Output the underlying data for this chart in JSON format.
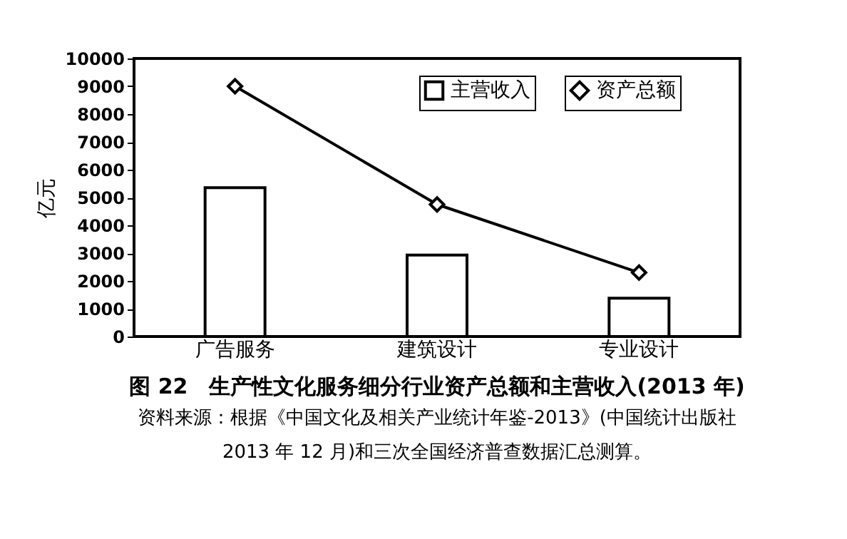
{
  "chart_data": {
    "type": "bar",
    "title": "图 22　生产性文化服务细分行业资产总额和主营收入(2013 年)",
    "ylabel": "亿元",
    "categories": [
      "广告服务",
      "建筑设计",
      "专业设计"
    ],
    "series": [
      {
        "name": "主营收入",
        "color": "#ffffff",
        "values": [
          5350,
          2930,
          1380
        ]
      },
      {
        "name": "资产总额",
        "type": "line",
        "color": "#000000",
        "marker": "diamond",
        "values": [
          9000,
          4750,
          2300
        ]
      }
    ],
    "ylim": [
      0,
      10000
    ],
    "yticks": [
      0,
      1000,
      2000,
      3000,
      4000,
      5000,
      6000,
      7000,
      8000,
      9000,
      10000
    ],
    "grid": false,
    "legend": "top right",
    "annotations": [
      "资料来源：根据《中国文化及相关产业统计年鉴-2013》(中国统计出版社 2013 年 12 月)和三次全国经济普查数据汇总测算。"
    ]
  }
}
